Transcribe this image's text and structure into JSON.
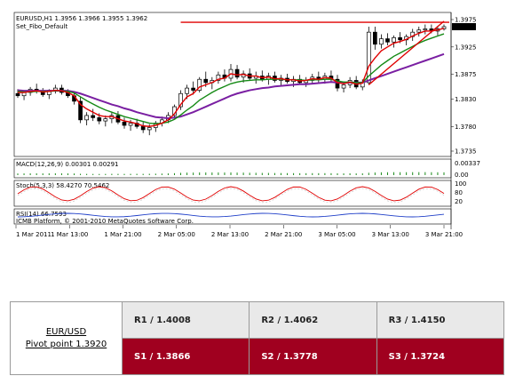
{
  "chart_data": {
    "type": "candlestick",
    "header": {
      "symbol": "EURUSD,H1",
      "ohlc": "1.3956 1.3966 1.3955 1.3962",
      "indicator": "Set_Fibo_Default"
    },
    "price_axis": {
      "ticks": [
        "1.3975",
        "1.3925",
        "1.3875",
        "1.3830",
        "1.3780",
        "1.3735"
      ],
      "current": "1.3962",
      "ylim": [
        1.3735,
        1.3975
      ]
    },
    "time_axis": [
      "1 Mar 2011",
      "1 Mar 13:00",
      "1 Mar 21:00",
      "2 Mar 05:00",
      "2 Mar 13:00",
      "2 Mar 21:00",
      "3 Mar 05:00",
      "3 Mar 13:00",
      "3 Mar 21:00"
    ],
    "candles": [
      [
        1.384,
        1.3848,
        1.3832,
        1.3836
      ],
      [
        1.3836,
        1.3846,
        1.3828,
        1.3842
      ],
      [
        1.3842,
        1.3852,
        1.3836,
        1.3848
      ],
      [
        1.3848,
        1.3858,
        1.384,
        1.3844
      ],
      [
        1.3844,
        1.385,
        1.3834,
        1.3838
      ],
      [
        1.3838,
        1.3848,
        1.383,
        1.3846
      ],
      [
        1.3846,
        1.3856,
        1.384,
        1.385
      ],
      [
        1.385,
        1.3856,
        1.3838,
        1.3842
      ],
      [
        1.3842,
        1.3848,
        1.3832,
        1.3836
      ],
      [
        1.3836,
        1.3842,
        1.382,
        1.3826
      ],
      [
        1.3826,
        1.3834,
        1.3786,
        1.3792
      ],
      [
        1.3792,
        1.3806,
        1.3782,
        1.38
      ],
      [
        1.38,
        1.3812,
        1.379,
        1.3796
      ],
      [
        1.3796,
        1.3804,
        1.3784,
        1.379
      ],
      [
        1.379,
        1.38,
        1.378,
        1.3794
      ],
      [
        1.3794,
        1.3806,
        1.3786,
        1.38
      ],
      [
        1.38,
        1.3808,
        1.3784,
        1.3788
      ],
      [
        1.3788,
        1.3796,
        1.3776,
        1.3782
      ],
      [
        1.3782,
        1.3792,
        1.3772,
        1.3786
      ],
      [
        1.3786,
        1.3794,
        1.3776,
        1.378
      ],
      [
        1.378,
        1.3788,
        1.3768,
        1.3774
      ],
      [
        1.3774,
        1.3784,
        1.3764,
        1.3778
      ],
      [
        1.3778,
        1.379,
        1.377,
        1.3786
      ],
      [
        1.3786,
        1.3798,
        1.378,
        1.3792
      ],
      [
        1.3792,
        1.3806,
        1.3786,
        1.38
      ],
      [
        1.38,
        1.382,
        1.3794,
        1.3816
      ],
      [
        1.3816,
        1.3846,
        1.381,
        1.384
      ],
      [
        1.384,
        1.3856,
        1.383,
        1.385
      ],
      [
        1.385,
        1.3862,
        1.3838,
        1.3846
      ],
      [
        1.3846,
        1.387,
        1.3842,
        1.3866
      ],
      [
        1.3866,
        1.388,
        1.3852,
        1.386
      ],
      [
        1.386,
        1.387,
        1.3848,
        1.3864
      ],
      [
        1.3864,
        1.388,
        1.3858,
        1.3874
      ],
      [
        1.3874,
        1.3884,
        1.3862,
        1.3868
      ],
      [
        1.3868,
        1.3894,
        1.3862,
        1.3884
      ],
      [
        1.3884,
        1.3892,
        1.3866,
        1.387
      ],
      [
        1.387,
        1.3882,
        1.386,
        1.3876
      ],
      [
        1.3876,
        1.3886,
        1.3864,
        1.3868
      ],
      [
        1.3868,
        1.388,
        1.3858,
        1.3872
      ],
      [
        1.3872,
        1.3882,
        1.3862,
        1.3866
      ],
      [
        1.3866,
        1.3878,
        1.3856,
        1.3872
      ],
      [
        1.3872,
        1.388,
        1.386,
        1.3864
      ],
      [
        1.3864,
        1.3874,
        1.3854,
        1.3868
      ],
      [
        1.3868,
        1.3876,
        1.3858,
        1.3862
      ],
      [
        1.3862,
        1.3872,
        1.3852,
        1.3866
      ],
      [
        1.3866,
        1.3874,
        1.3856,
        1.386
      ],
      [
        1.386,
        1.387,
        1.3852,
        1.3864
      ],
      [
        1.3864,
        1.3876,
        1.3858,
        1.387
      ],
      [
        1.387,
        1.388,
        1.386,
        1.3866
      ],
      [
        1.3866,
        1.3878,
        1.3858,
        1.3872
      ],
      [
        1.3872,
        1.3882,
        1.3862,
        1.3866
      ],
      [
        1.3866,
        1.3874,
        1.3844,
        1.385
      ],
      [
        1.385,
        1.3862,
        1.3842,
        1.3856
      ],
      [
        1.3856,
        1.387,
        1.385,
        1.3864
      ],
      [
        1.3864,
        1.3872,
        1.3848,
        1.3852
      ],
      [
        1.3852,
        1.3866,
        1.3846,
        1.386
      ],
      [
        1.386,
        1.3962,
        1.3856,
        1.3952
      ],
      [
        1.3952,
        1.3962,
        1.392,
        1.393
      ],
      [
        1.393,
        1.3948,
        1.3922,
        1.394
      ],
      [
        1.394,
        1.395,
        1.3928,
        1.3934
      ],
      [
        1.3934,
        1.3946,
        1.3924,
        1.3942
      ],
      [
        1.3942,
        1.3952,
        1.3932,
        1.3938
      ],
      [
        1.3938,
        1.3948,
        1.3928,
        1.3944
      ],
      [
        1.3944,
        1.3958,
        1.3936,
        1.3952
      ],
      [
        1.3952,
        1.3962,
        1.3944,
        1.3956
      ],
      [
        1.3956,
        1.3966,
        1.3948,
        1.3958
      ],
      [
        1.3958,
        1.3966,
        1.395,
        1.3954
      ],
      [
        1.3954,
        1.3962,
        1.3946,
        1.3958
      ],
      [
        1.3958,
        1.3966,
        1.3955,
        1.3962
      ]
    ],
    "ma_fast": [
      1.3842,
      1.3842,
      1.3844,
      1.3845,
      1.3843,
      1.3844,
      1.3846,
      1.3845,
      1.3842,
      1.3836,
      1.382,
      1.3812,
      1.3806,
      1.38,
      1.3798,
      1.3798,
      1.3794,
      1.379,
      1.3788,
      1.3785,
      1.3781,
      1.378,
      1.3782,
      1.3786,
      1.3792,
      1.3803,
      1.382,
      1.3834,
      1.384,
      1.3852,
      1.3856,
      1.386,
      1.3866,
      1.3868,
      1.3876,
      1.3874,
      1.3875,
      1.3872,
      1.3872,
      1.3869,
      1.387,
      1.3867,
      1.3867,
      1.3865,
      1.3865,
      1.3863,
      1.3864,
      1.3867,
      1.3866,
      1.3869,
      1.3868,
      1.386,
      1.3858,
      1.3861,
      1.3857,
      1.3859,
      1.389,
      1.3905,
      1.3918,
      1.3925,
      1.3932,
      1.3935,
      1.3939,
      1.3945,
      1.395,
      1.3954,
      1.3954,
      1.3956,
      1.3959
    ],
    "ma_mid": [
      1.3844,
      1.3843,
      1.3843,
      1.3844,
      1.3844,
      1.3844,
      1.3845,
      1.3845,
      1.3844,
      1.3841,
      1.3834,
      1.3827,
      1.3821,
      1.3815,
      1.381,
      1.3806,
      1.3802,
      1.3798,
      1.3795,
      1.3792,
      1.3789,
      1.3786,
      1.3785,
      1.3786,
      1.3788,
      1.3793,
      1.3801,
      1.381,
      1.3818,
      1.3828,
      1.3835,
      1.3842,
      1.3848,
      1.3853,
      1.3858,
      1.3861,
      1.3863,
      1.3864,
      1.3865,
      1.3865,
      1.3866,
      1.3866,
      1.3866,
      1.3865,
      1.3865,
      1.3865,
      1.3864,
      1.3865,
      1.3865,
      1.3866,
      1.3866,
      1.3863,
      1.3861,
      1.3861,
      1.386,
      1.386,
      1.3872,
      1.3882,
      1.3892,
      1.39,
      1.3908,
      1.3914,
      1.392,
      1.3926,
      1.3932,
      1.3937,
      1.3941,
      1.3945,
      1.3949
    ],
    "ma_slow": [
      1.3846,
      1.3845,
      1.3845,
      1.3845,
      1.3845,
      1.3845,
      1.3845,
      1.3845,
      1.3845,
      1.3843,
      1.384,
      1.3836,
      1.3832,
      1.3828,
      1.3824,
      1.382,
      1.3817,
      1.3813,
      1.381,
      1.3806,
      1.3803,
      1.38,
      1.3797,
      1.3796,
      1.3795,
      1.3796,
      1.3798,
      1.3802,
      1.3806,
      1.3811,
      1.3816,
      1.3821,
      1.3826,
      1.3831,
      1.3836,
      1.384,
      1.3843,
      1.3846,
      1.3848,
      1.385,
      1.3851,
      1.3853,
      1.3854,
      1.3855,
      1.3856,
      1.3857,
      1.3857,
      1.3858,
      1.3859,
      1.386,
      1.3861,
      1.386,
      1.386,
      1.386,
      1.386,
      1.386,
      1.3864,
      1.3868,
      1.3872,
      1.3876,
      1.388,
      1.3884,
      1.3888,
      1.3892,
      1.3896,
      1.39,
      1.3904,
      1.3908,
      1.3912
    ],
    "resistance_line": 1.397,
    "trend_line": [
      [
        56,
        1.3856
      ],
      [
        68,
        1.3972
      ]
    ],
    "macd_panel": {
      "label": "MACD(12,26,9) 0.00301 0.00291",
      "scale": [
        "0.00337",
        "0.00"
      ]
    },
    "stoch_panel": {
      "label": "Stoch(5,3,3) 58.4270 70.5462",
      "scale": [
        "100",
        "80",
        "20"
      ]
    },
    "rsi_panel": {
      "label": "RSI(14) 66.7593",
      "copyright": "ICMB Platform, © 2001-2010 MetaQuotes Software Corp."
    }
  },
  "pivot_table": {
    "pair": "EUR/USD",
    "pivot": "Pivot point 1.3920",
    "resistances": [
      "R1 / 1.4008",
      "R2 / 1.4062",
      "R3 / 1.4150"
    ],
    "supports": [
      "S1 / 1.3866",
      "S2 / 1.3778",
      "S3 / 1.3724"
    ]
  },
  "colors": {
    "chart_bg": "#ffffff",
    "ma_fast": "#e00000",
    "ma_mid": "#158a15",
    "ma_slow": "#7a1fa2",
    "resistance": "#e00000",
    "macd_hist": "#1a8a1a",
    "stoch_main": "#e00000",
    "rsi_line": "#1e3ec8",
    "support_row": "#a0001f",
    "resistance_row": "#e9e9e9"
  }
}
